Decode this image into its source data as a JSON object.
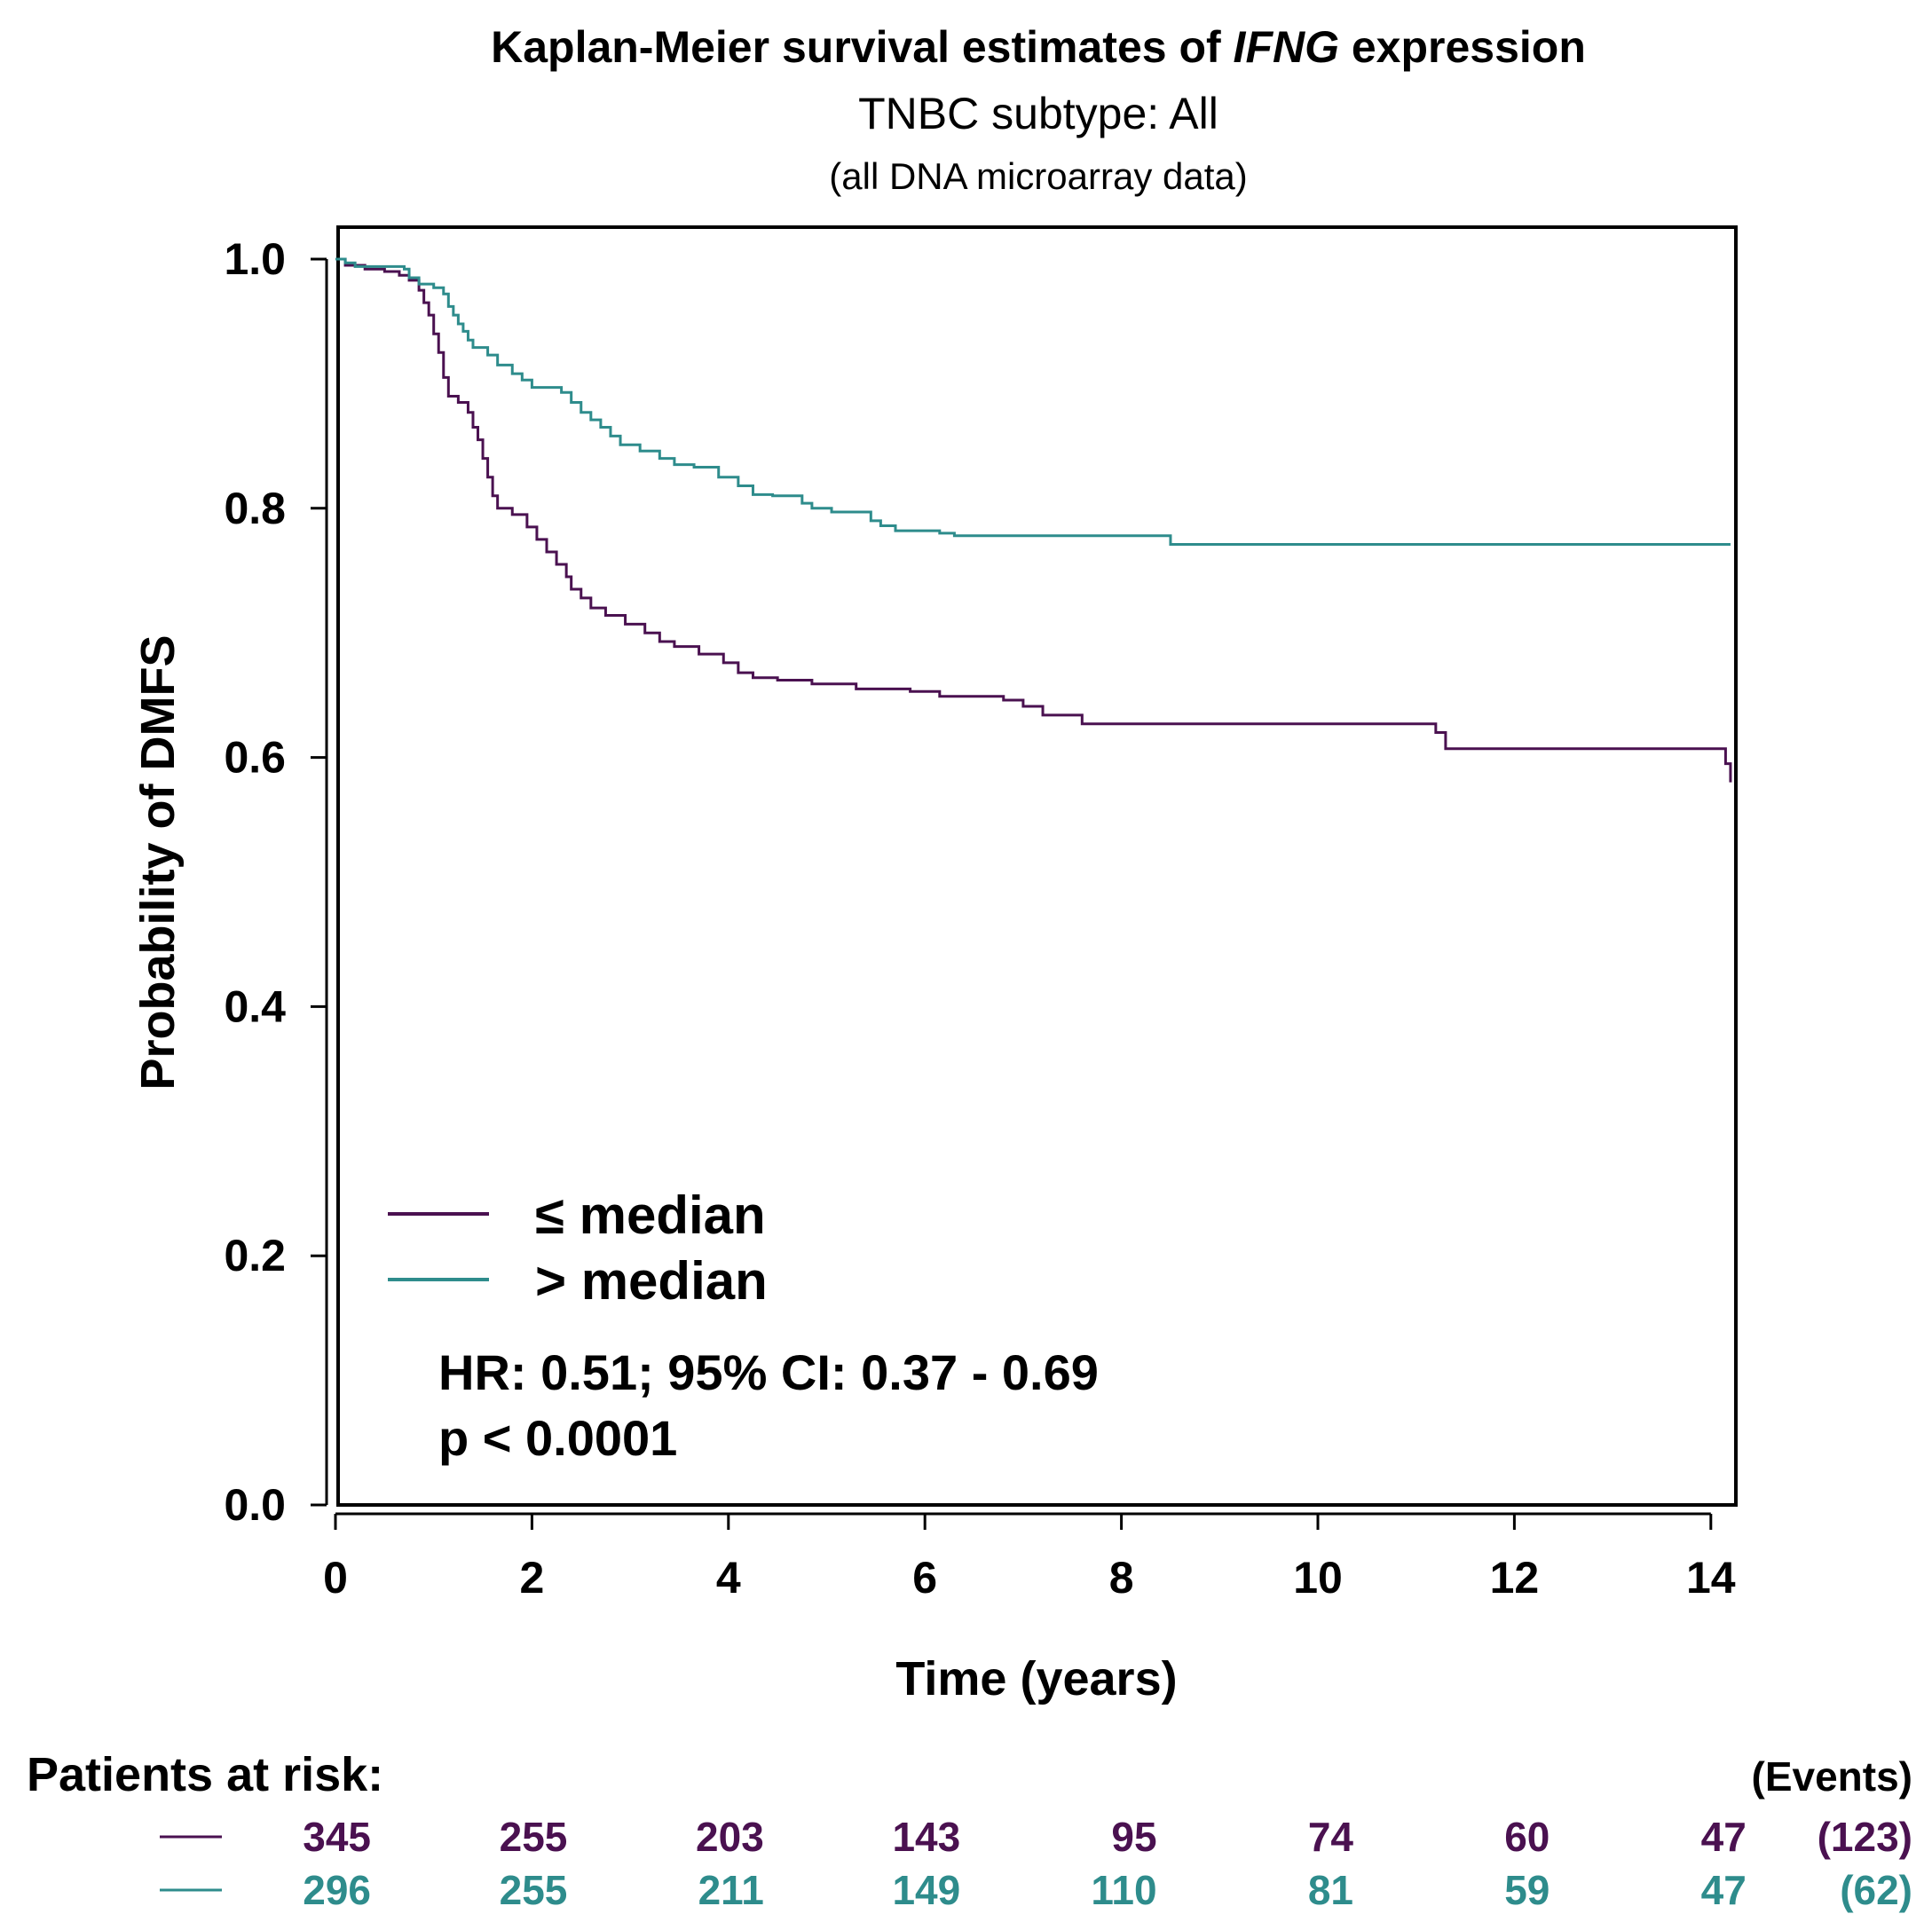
{
  "chart_data": {
    "type": "line",
    "subtype": "kaplan-meier",
    "title_pre": "Kaplan-Meier survival estimates of ",
    "title_gene": "IFNG",
    "title_post": " expression",
    "subtitle": "TNBC subtype: All",
    "subtitle2": "(all DNA microarray data)",
    "xlabel": "Time (years)",
    "ylabel": "Probability of DMFS",
    "xlim": [
      0,
      14.2
    ],
    "ylim": [
      0,
      1
    ],
    "xticks": [
      0,
      2,
      4,
      6,
      8,
      10,
      12,
      14
    ],
    "yticks": [
      "0.0",
      "0.2",
      "0.4",
      "0.6",
      "0.8",
      "1.0"
    ],
    "grid": false,
    "legend_position": "bottom-left",
    "series": [
      {
        "name": "≤ median",
        "color": "#4a1150",
        "steps": [
          [
            0,
            1.0
          ],
          [
            0.1,
            0.995
          ],
          [
            0.3,
            0.992
          ],
          [
            0.5,
            0.99
          ],
          [
            0.65,
            0.987
          ],
          [
            0.75,
            0.983
          ],
          [
            0.85,
            0.975
          ],
          [
            0.9,
            0.965
          ],
          [
            0.95,
            0.955
          ],
          [
            1.0,
            0.94
          ],
          [
            1.05,
            0.925
          ],
          [
            1.1,
            0.905
          ],
          [
            1.15,
            0.89
          ],
          [
            1.25,
            0.885
          ],
          [
            1.35,
            0.877
          ],
          [
            1.4,
            0.865
          ],
          [
            1.45,
            0.855
          ],
          [
            1.5,
            0.84
          ],
          [
            1.55,
            0.825
          ],
          [
            1.6,
            0.81
          ],
          [
            1.65,
            0.8
          ],
          [
            1.8,
            0.795
          ],
          [
            1.95,
            0.785
          ],
          [
            2.05,
            0.775
          ],
          [
            2.15,
            0.765
          ],
          [
            2.25,
            0.755
          ],
          [
            2.35,
            0.745
          ],
          [
            2.4,
            0.735
          ],
          [
            2.5,
            0.728
          ],
          [
            2.6,
            0.72
          ],
          [
            2.75,
            0.714
          ],
          [
            2.95,
            0.707
          ],
          [
            3.15,
            0.7
          ],
          [
            3.3,
            0.693
          ],
          [
            3.45,
            0.689
          ],
          [
            3.7,
            0.683
          ],
          [
            3.95,
            0.676
          ],
          [
            4.1,
            0.668
          ],
          [
            4.25,
            0.664
          ],
          [
            4.5,
            0.662
          ],
          [
            4.85,
            0.659
          ],
          [
            5.3,
            0.655
          ],
          [
            5.85,
            0.653
          ],
          [
            6.15,
            0.649
          ],
          [
            6.8,
            0.646
          ],
          [
            7.0,
            0.641
          ],
          [
            7.2,
            0.634
          ],
          [
            7.6,
            0.627
          ],
          [
            8.5,
            0.627
          ],
          [
            9.5,
            0.627
          ],
          [
            10.5,
            0.627
          ],
          [
            11.2,
            0.62
          ],
          [
            11.3,
            0.607
          ],
          [
            11.5,
            0.607
          ],
          [
            13.0,
            0.607
          ],
          [
            14.1,
            0.607
          ],
          [
            14.15,
            0.595
          ],
          [
            14.2,
            0.58
          ]
        ]
      },
      {
        "name": "> median",
        "color": "#2e8c8c",
        "steps": [
          [
            0,
            1.0
          ],
          [
            0.1,
            0.997
          ],
          [
            0.2,
            0.994
          ],
          [
            0.7,
            0.992
          ],
          [
            0.75,
            0.985
          ],
          [
            0.85,
            0.98
          ],
          [
            1.0,
            0.977
          ],
          [
            1.1,
            0.972
          ],
          [
            1.15,
            0.962
          ],
          [
            1.2,
            0.955
          ],
          [
            1.25,
            0.948
          ],
          [
            1.3,
            0.942
          ],
          [
            1.35,
            0.935
          ],
          [
            1.4,
            0.929
          ],
          [
            1.55,
            0.923
          ],
          [
            1.65,
            0.915
          ],
          [
            1.8,
            0.908
          ],
          [
            1.9,
            0.903
          ],
          [
            2.0,
            0.897
          ],
          [
            2.3,
            0.893
          ],
          [
            2.4,
            0.885
          ],
          [
            2.5,
            0.877
          ],
          [
            2.6,
            0.871
          ],
          [
            2.7,
            0.865
          ],
          [
            2.8,
            0.858
          ],
          [
            2.9,
            0.851
          ],
          [
            3.1,
            0.846
          ],
          [
            3.3,
            0.84
          ],
          [
            3.45,
            0.835
          ],
          [
            3.65,
            0.833
          ],
          [
            3.9,
            0.825
          ],
          [
            4.1,
            0.818
          ],
          [
            4.25,
            0.811
          ],
          [
            4.45,
            0.81
          ],
          [
            4.6,
            0.81
          ],
          [
            4.75,
            0.804
          ],
          [
            4.85,
            0.8
          ],
          [
            5.05,
            0.797
          ],
          [
            5.35,
            0.797
          ],
          [
            5.45,
            0.79
          ],
          [
            5.55,
            0.786
          ],
          [
            5.7,
            0.782
          ],
          [
            6.0,
            0.782
          ],
          [
            6.15,
            0.78
          ],
          [
            6.3,
            0.778
          ],
          [
            7.5,
            0.778
          ],
          [
            8.5,
            0.771
          ],
          [
            9.5,
            0.771
          ],
          [
            11.0,
            0.771
          ],
          [
            14.2,
            0.771
          ]
        ]
      }
    ],
    "annotations": {
      "hr": "HR: 0.51; 95% CI: 0.37 - 0.69",
      "p": "p < 0.0001"
    },
    "risk_table": {
      "header": "Patients at risk:",
      "events_header": "(Events)",
      "rows": [
        {
          "color": "#4a1150",
          "values": [
            "345",
            "255",
            "203",
            "143",
            "95",
            "74",
            "60",
            "47"
          ],
          "events": "(123)"
        },
        {
          "color": "#2e8c8c",
          "values": [
            "296",
            "255",
            "211",
            "149",
            "110",
            "81",
            "59",
            "47"
          ],
          "events": "(62)"
        }
      ]
    }
  }
}
